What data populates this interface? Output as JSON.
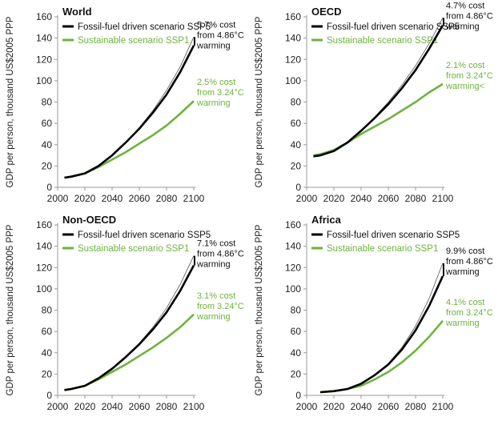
{
  "shared": {
    "ylabel": "GDP per person, thousand US$2005 PPP",
    "ylim": [
      0,
      160
    ],
    "xlim": [
      2000,
      2100
    ],
    "xticks": [
      2000,
      2020,
      2040,
      2060,
      2080,
      2100
    ],
    "yticks": [
      0,
      20,
      40,
      60,
      80,
      100,
      120,
      140,
      160
    ],
    "colors": {
      "fossil": "#000000",
      "sustainable": "#6db33f",
      "thin": "#555555"
    }
  },
  "chart_data": [
    {
      "type": "line",
      "title": "World",
      "xlabel": "",
      "ylabel": "GDP per person, thousand US$2005 PPP",
      "ylim": [
        0,
        160
      ],
      "x": [
        2005,
        2010,
        2020,
        2030,
        2040,
        2050,
        2060,
        2070,
        2080,
        2090,
        2100
      ],
      "series": [
        {
          "name": "Fossil-fuel driven scenario SSP5",
          "values": [
            9,
            10,
            13,
            20,
            30,
            42,
            55,
            70,
            87,
            108,
            133
          ]
        },
        {
          "name": "Sustainable scenario SSP1",
          "values": [
            9,
            10,
            13,
            19,
            26,
            33,
            41,
            49,
            58,
            69,
            81
          ]
        }
      ],
      "thin_values": [
        9,
        10,
        13,
        20,
        30,
        42,
        56,
        72,
        91,
        113,
        141
      ],
      "annotations": {
        "fossil": [
          "5.7% cost",
          "from 4.86°C",
          "warming"
        ],
        "sustainable": [
          "2.5% cost",
          "from 3.24°C",
          "warming"
        ]
      }
    },
    {
      "type": "line",
      "title": "OECD",
      "xlabel": "",
      "ylabel": "GDP per person, thousand US$2005 PPP",
      "ylim": [
        0,
        160
      ],
      "x": [
        2005,
        2010,
        2020,
        2030,
        2040,
        2050,
        2060,
        2070,
        2080,
        2090,
        2100
      ],
      "series": [
        {
          "name": "Fossil-fuel driven scenario SSP5",
          "values": [
            29,
            30,
            34,
            42,
            53,
            65,
            78,
            93,
            110,
            130,
            152
          ]
        },
        {
          "name": "Sustainable scenario SSP1",
          "values": [
            30,
            31,
            35,
            42,
            50,
            57,
            64,
            72,
            80,
            89,
            97
          ]
        }
      ],
      "thin_values": [
        29,
        30,
        34,
        42,
        53,
        66,
        80,
        96,
        114,
        135,
        159
      ],
      "annotations": {
        "fossil": [
          "4.7% cost",
          "from 4.86°C",
          "warming"
        ],
        "sustainable": [
          "2.1% cost",
          "from 3.24°C",
          "warming<"
        ]
      }
    },
    {
      "type": "line",
      "title": "Non-OECD",
      "xlabel": "",
      "ylabel": "GDP per person, thousand US$2005 PPP",
      "ylim": [
        0,
        160
      ],
      "x": [
        2005,
        2010,
        2020,
        2030,
        2040,
        2050,
        2060,
        2070,
        2080,
        2090,
        2100
      ],
      "series": [
        {
          "name": "Fossil-fuel driven scenario SSP5",
          "values": [
            5,
            6,
            9,
            16,
            25,
            36,
            48,
            62,
            78,
            98,
            122
          ]
        },
        {
          "name": "Sustainable scenario SSP1",
          "values": [
            5,
            6,
            9,
            15,
            22,
            29,
            37,
            45,
            54,
            64,
            76
          ]
        }
      ],
      "thin_values": [
        5,
        6,
        9,
        16,
        25,
        36,
        49,
        64,
        82,
        104,
        131
      ],
      "annotations": {
        "fossil": [
          "7.1% cost",
          "from 4.86°C",
          "warming"
        ],
        "sustainable": [
          "3.1% cost",
          "from 3.24°C",
          "warming"
        ]
      }
    },
    {
      "type": "line",
      "title": "Africa",
      "xlabel": "",
      "ylabel": "GDP per person, thousand US$2005 PPP",
      "ylim": [
        0,
        160
      ],
      "x": [
        2010,
        2020,
        2030,
        2040,
        2050,
        2060,
        2070,
        2080,
        2090,
        2100
      ],
      "series": [
        {
          "name": "Fossil-fuel driven scenario SSP5",
          "values": [
            3,
            4,
            6,
            11,
            19,
            29,
            43,
            61,
            84,
            112
          ]
        },
        {
          "name": "Sustainable scenario SSP1",
          "values": [
            3,
            4,
            6,
            9,
            15,
            22,
            31,
            42,
            55,
            70
          ]
        }
      ],
      "thin_values": [
        3,
        4,
        6,
        11,
        19,
        30,
        45,
        65,
        91,
        124
      ],
      "annotations": {
        "fossil": [
          "9.9% cost",
          "from 4.86°C",
          "warming"
        ],
        "sustainable": [
          "4.1% cost",
          "from 3.24°C",
          "warming"
        ]
      }
    }
  ]
}
